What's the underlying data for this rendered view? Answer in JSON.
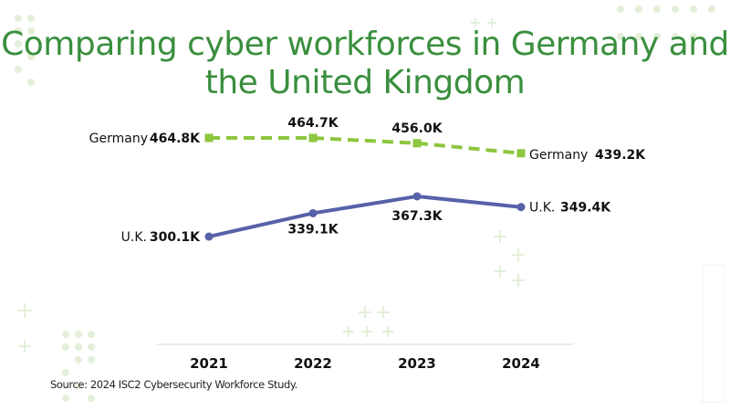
{
  "chart_data": {
    "type": "line",
    "title": "Comparing cyber workforces in Germany and the United Kingdom",
    "x": [
      "2021",
      "2022",
      "2023",
      "2024"
    ],
    "series": [
      {
        "name": "Germany",
        "values": [
          464.8,
          464.7,
          456.0,
          439.2
        ],
        "labels": [
          "464.8K",
          "464.7K",
          "456.0K",
          "439.2K"
        ],
        "color": "#8dc63f",
        "style": "dashed",
        "marker": "square"
      },
      {
        "name": "U.K.",
        "values": [
          300.1,
          339.1,
          367.3,
          349.4
        ],
        "labels": [
          "300.1K",
          "339.1K",
          "367.3K",
          "349.4K"
        ],
        "color": "#5661a8",
        "style": "solid",
        "marker": "circle"
      }
    ],
    "xlabel": "",
    "ylabel": "",
    "ylim": [
      250,
      480
    ],
    "grid": false,
    "legend": "inline-labels",
    "source": "Source: 2024 ISC2 Cybersecurity Workforce Study."
  }
}
